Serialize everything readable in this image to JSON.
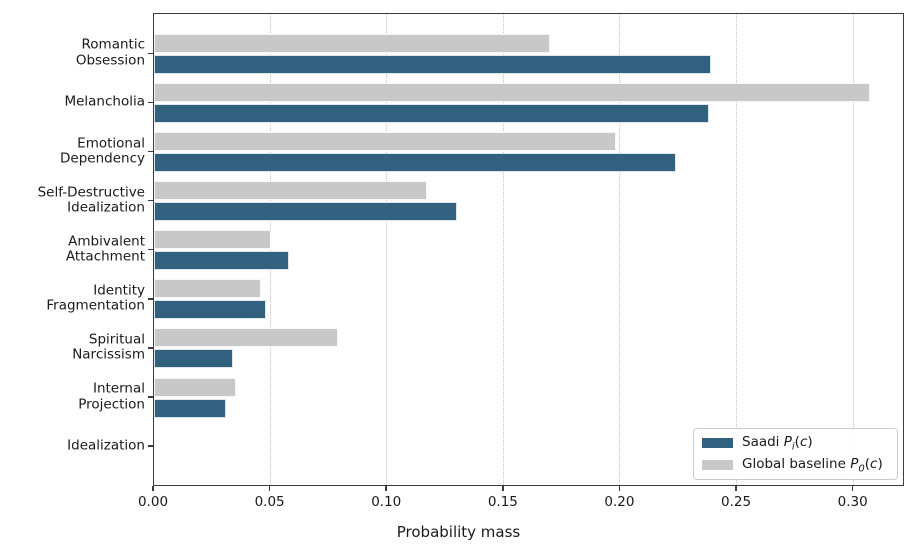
{
  "chart_data": {
    "type": "bar",
    "orientation": "horizontal",
    "title": "",
    "xlabel": "Probability mass",
    "categories": [
      "Romantic\nObsession",
      "Melancholia",
      "Emotional\nDependency",
      "Self-Destructive\nIdealization",
      "Ambivalent\nAttachment",
      "Identity\nFragmentation",
      "Spiritual\nNarcissism",
      "Internal\nProjection",
      "Idealization"
    ],
    "series": [
      {
        "name": "Saadi Pᵢ(c)",
        "color": "#31617f",
        "values": [
          0.239,
          0.238,
          0.224,
          0.13,
          0.058,
          0.048,
          0.034,
          0.031,
          0.0
        ]
      },
      {
        "name": "Global baseline P₀(c)",
        "color": "#c8c8c8",
        "values": [
          0.17,
          0.307,
          0.198,
          0.117,
          0.05,
          0.046,
          0.079,
          0.035,
          0.0
        ]
      }
    ],
    "xlim": [
      0,
      0.322
    ],
    "xtick_labels": [
      "0.00",
      "0.05",
      "0.10",
      "0.15",
      "0.20",
      "0.25",
      "0.30"
    ],
    "grid": "vertical dotted",
    "legend_position": "lower right"
  },
  "legend": {
    "items": [
      {
        "prefix": "Saadi ",
        "symbol": "P",
        "subscript": "i",
        "arg": "c",
        "color": "#31617f"
      },
      {
        "prefix": "Global baseline ",
        "symbol": "P",
        "subscript": "0",
        "arg": "c",
        "color": "#c8c8c8"
      }
    ]
  },
  "colors": {
    "saadi": "#31617f",
    "baseline": "#c8c8c8",
    "gridline": "#c4c4c4",
    "spine": "#3c3c3c",
    "text": "#1a1a1a"
  }
}
